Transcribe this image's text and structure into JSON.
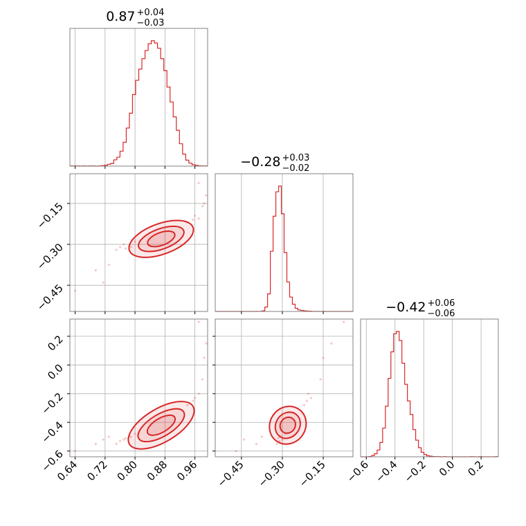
{
  "chart_data": {
    "type": "corner",
    "line_color": "#d62728",
    "grid": true,
    "grid_color": "#b0b0b0",
    "titles": [
      {
        "main": "0.87",
        "plus": "+0.04",
        "minus": "−0.03"
      },
      {
        "main": "−0.28",
        "plus": "+0.03",
        "minus": "−0.02"
      },
      {
        "main": "−0.42",
        "plus": "+0.06",
        "minus": "−0.06"
      }
    ],
    "params": [
      {
        "range": [
          0.626,
          0.994
        ],
        "ticks": [
          0.64,
          0.72,
          0.8,
          0.88,
          0.96
        ],
        "tick_labels": [
          "0.64",
          "0.72",
          "0.80",
          "0.88",
          "0.96"
        ]
      },
      {
        "range": [
          -0.546,
          -0.041
        ],
        "ticks": [
          -0.45,
          -0.3,
          -0.15
        ],
        "tick_labels": [
          "−0.45",
          "−0.30",
          "−0.15"
        ]
      },
      {
        "range": [
          -0.64,
          0.32
        ],
        "ticks": [
          -0.6,
          -0.4,
          -0.2,
          0.0,
          0.2
        ],
        "tick_labels": [
          "−0.6",
          "−0.4",
          "−0.2",
          "0.0",
          "0.2"
        ]
      }
    ],
    "histograms": [
      {
        "param": 0,
        "counts": [
          1,
          1,
          1,
          0,
          1,
          0,
          1,
          1,
          0,
          1,
          3,
          6,
          12,
          18,
          42,
          60,
          100,
          160,
          255,
          355,
          480,
          575,
          650,
          720,
          775,
          820,
          840,
          825,
          790,
          720,
          640,
          530,
          430,
          330,
          240,
          150,
          80,
          40,
          20,
          10,
          5,
          2,
          1,
          1
        ]
      },
      {
        "param": 1,
        "counts": [
          0,
          0,
          0,
          0,
          0,
          0,
          0,
          0,
          0,
          0,
          0,
          0,
          0,
          0,
          0,
          1,
          1,
          5,
          35,
          140,
          480,
          760,
          955,
          1000,
          780,
          470,
          235,
          115,
          58,
          25,
          12,
          8,
          5,
          3,
          2,
          1,
          1,
          0,
          0,
          1,
          0,
          0,
          0,
          0,
          0,
          0,
          0,
          0,
          0,
          0
        ]
      },
      {
        "param": 2,
        "counts": [
          0,
          0,
          0,
          2,
          8,
          20,
          45,
          95,
          190,
          335,
          520,
          695,
          815,
          830,
          770,
          620,
          480,
          370,
          280,
          180,
          110,
          60,
          30,
          15,
          7,
          4,
          2,
          1,
          1,
          0,
          1,
          0,
          0,
          0,
          0,
          0,
          0,
          0,
          0,
          0,
          1,
          0,
          0,
          1,
          0,
          0,
          0,
          0,
          0,
          1
        ]
      }
    ],
    "scatter_points": [
      {
        "x": 0.64,
        "y": -0.47,
        "x2": -0.6
      },
      {
        "x": 0.695,
        "y": -0.395,
        "x2": -0.55
      },
      {
        "x": 0.715,
        "y": -0.44,
        "x2": -0.52
      },
      {
        "x": 0.73,
        "y": -0.375,
        "x2": -0.5
      },
      {
        "x": 0.75,
        "y": -0.32,
        "x2": -0.55
      },
      {
        "x": 0.76,
        "y": -0.31,
        "x2": -0.53
      },
      {
        "x": 0.77,
        "y": -0.3,
        "x2": -0.52
      },
      {
        "x": 0.775,
        "y": -0.315,
        "x2": -0.51
      },
      {
        "x": 0.785,
        "y": -0.305,
        "x2": -0.5
      },
      {
        "x": 0.79,
        "y": -0.31,
        "x2": -0.5
      },
      {
        "x": 0.8,
        "y": -0.29,
        "x2": -0.48
      },
      {
        "x": 0.94,
        "y": -0.22,
        "x2": -0.28
      },
      {
        "x": 0.955,
        "y": -0.21,
        "x2": -0.25
      },
      {
        "x": 0.96,
        "y": -0.195,
        "x2": -0.23
      },
      {
        "x": 0.97,
        "y": -0.205,
        "x2": -0.2
      },
      {
        "x": 0.98,
        "y": -0.16,
        "x2": -0.1
      },
      {
        "x": 0.985,
        "y": -0.15,
        "x2": 0.05
      },
      {
        "x": 0.99,
        "y": -0.12,
        "x2": 0.15
      },
      {
        "x": 0.97,
        "y": -0.075,
        "x2": 0.3
      }
    ],
    "contours": {
      "center": {
        "x": 0.87,
        "y": -0.28,
        "x2": -0.42
      },
      "slope_y_per_x": 0.5,
      "slope_x2_per_x": 1.55,
      "slope_x2_per_y": 2.6,
      "levels": [
        {
          "semi_major": 0.085,
          "semi_minor": 0.012
        },
        {
          "semi_major": 0.06,
          "semi_minor": 0.008
        },
        {
          "semi_major": 0.036,
          "semi_minor": 0.005
        }
      ]
    }
  }
}
